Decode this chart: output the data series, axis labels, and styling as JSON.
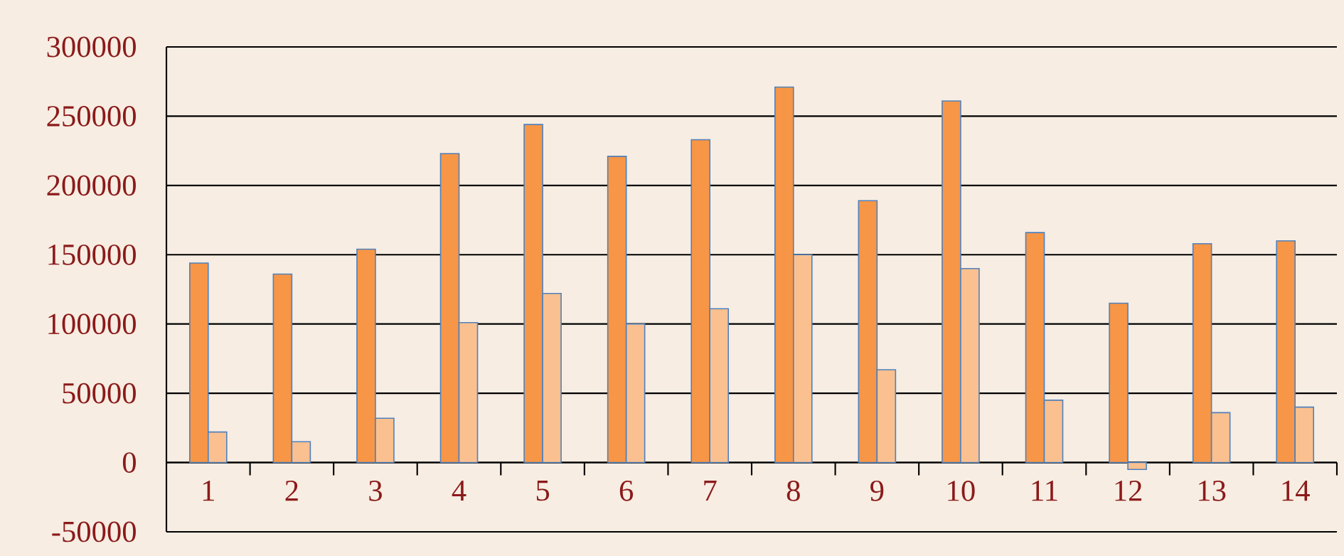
{
  "chart_data": {
    "type": "bar",
    "categories": [
      "1",
      "2",
      "3",
      "4",
      "5",
      "6",
      "7",
      "8",
      "9",
      "10",
      "11",
      "12",
      "13",
      "14"
    ],
    "series": [
      {
        "color": "#f79646",
        "values": [
          144000,
          136000,
          154000,
          223000,
          244000,
          221000,
          233000,
          271000,
          189000,
          261000,
          166000,
          115000,
          158000,
          160000
        ]
      },
      {
        "color": "#fac08f",
        "values": [
          22000,
          15000,
          32000,
          101000,
          122000,
          100000,
          111000,
          150000,
          67000,
          140000,
          45000,
          -5000,
          36000,
          40000
        ]
      }
    ],
    "ylim": [
      -50000,
      300000
    ],
    "yticks": [
      -50000,
      0,
      50000,
      100000,
      150000,
      200000,
      250000,
      300000
    ],
    "grid": "y"
  }
}
